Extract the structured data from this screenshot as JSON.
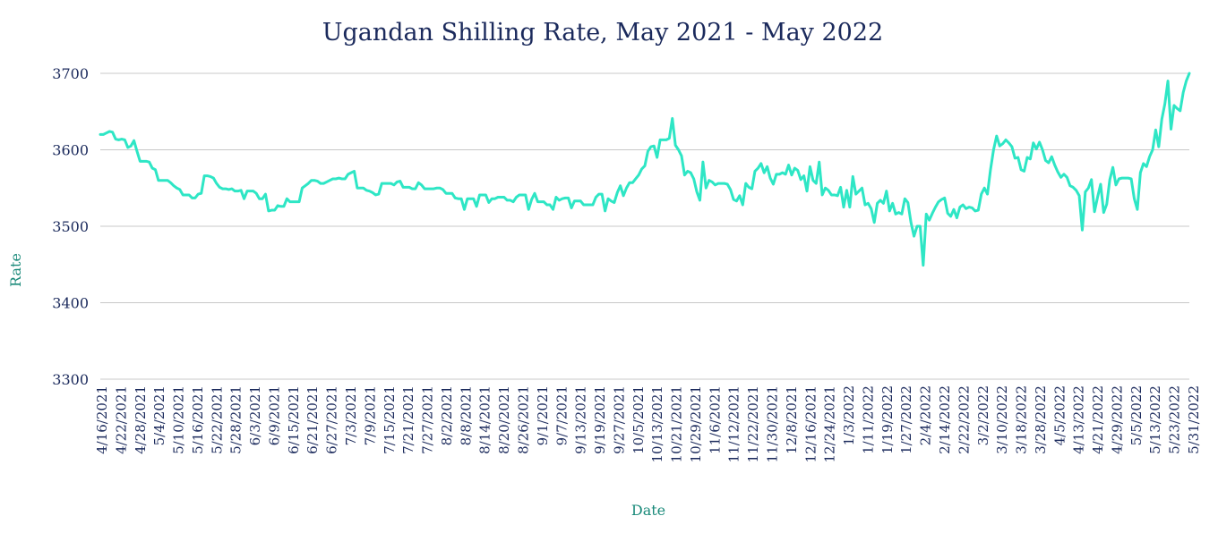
{
  "chart_data": {
    "type": "line",
    "title": "Ugandan Shilling Rate, May 2021 - May 2022",
    "xlabel": "Date",
    "ylabel": "Rate",
    "ylim": [
      3300,
      3700
    ],
    "yticks": [
      3300,
      3400,
      3500,
      3600,
      3700
    ],
    "grid": true,
    "legend": "none",
    "line_color": "#2ee6c5",
    "x_tick_labels": [
      "4/16/2021",
      "4/22/2021",
      "4/28/2021",
      "5/4/2021",
      "5/10/2021",
      "5/16/2021",
      "5/22/2021",
      "5/28/2021",
      "6/3/2021",
      "6/9/2021",
      "6/15/2021",
      "6/21/2021",
      "6/27/2021",
      "7/3/2021",
      "7/9/2021",
      "7/15/2021",
      "7/21/2021",
      "7/27/2021",
      "8/2/2021",
      "8/8/2021",
      "8/14/2021",
      "8/20/2021",
      "8/26/2021",
      "9/1/2021",
      "9/7/2021",
      "9/13/2021",
      "9/19/2021",
      "9/27/2021",
      "10/5/2021",
      "10/13/2021",
      "10/21/2021",
      "10/29/2021",
      "11/6/2021",
      "11/12/2021",
      "11/22/2021",
      "11/30/2021",
      "12/8/2021",
      "12/16/2021",
      "12/24/2021",
      "1/3/2022",
      "1/11/2022",
      "1/19/2022",
      "1/27/2022",
      "2/4/2022",
      "2/14/2022",
      "2/22/2022",
      "3/2/2022",
      "3/10/2022",
      "3/18/2022",
      "3/28/2022",
      "4/5/2022",
      "4/13/2022",
      "4/21/2022",
      "4/29/2022",
      "5/5/2022",
      "5/13/2022",
      "5/23/2022",
      "5/31/2022"
    ],
    "y": [
      3620,
      3620,
      3622,
      3624,
      3623,
      3614,
      3613,
      3614,
      3613,
      3603,
      3605,
      3612,
      3598,
      3585,
      3585,
      3585,
      3584,
      3576,
      3574,
      3560,
      3560,
      3560,
      3560,
      3557,
      3553,
      3550,
      3548,
      3541,
      3541,
      3541,
      3537,
      3537,
      3542,
      3543,
      3566,
      3566,
      3565,
      3563,
      3556,
      3551,
      3549,
      3549,
      3548,
      3549,
      3546,
      3546,
      3547,
      3536,
      3546,
      3546,
      3546,
      3543,
      3536,
      3536,
      3542,
      3520,
      3521,
      3521,
      3527,
      3526,
      3526,
      3536,
      3532,
      3532,
      3532,
      3532,
      3550,
      3553,
      3556,
      3560,
      3560,
      3559,
      3556,
      3556,
      3558,
      3560,
      3562,
      3562,
      3563,
      3562,
      3562,
      3568,
      3570,
      3572,
      3550,
      3550,
      3550,
      3547,
      3546,
      3544,
      3541,
      3542,
      3556,
      3556,
      3556,
      3556,
      3554,
      3558,
      3559,
      3551,
      3551,
      3551,
      3549,
      3549,
      3557,
      3554,
      3549,
      3549,
      3549,
      3549,
      3550,
      3550,
      3548,
      3543,
      3543,
      3543,
      3537,
      3536,
      3536,
      3522,
      3536,
      3536,
      3536,
      3526,
      3541,
      3541,
      3541,
      3531,
      3536,
      3536,
      3538,
      3538,
      3538,
      3534,
      3534,
      3532,
      3538,
      3541,
      3541,
      3541,
      3522,
      3535,
      3543,
      3532,
      3532,
      3532,
      3528,
      3528,
      3522,
      3538,
      3534,
      3536,
      3537,
      3537,
      3524,
      3533,
      3533,
      3533,
      3528,
      3528,
      3528,
      3528,
      3538,
      3542,
      3542,
      3520,
      3536,
      3533,
      3531,
      3544,
      3553,
      3540,
      3550,
      3557,
      3557,
      3562,
      3567,
      3575,
      3579,
      3598,
      3604,
      3605,
      3590,
      3613,
      3613,
      3613,
      3615,
      3641,
      3606,
      3600,
      3592,
      3567,
      3572,
      3570,
      3562,
      3545,
      3534,
      3584,
      3550,
      3560,
      3558,
      3554,
      3556,
      3556,
      3556,
      3555,
      3548,
      3535,
      3533,
      3540,
      3528,
      3556,
      3551,
      3549,
      3572,
      3576,
      3582,
      3570,
      3578,
      3563,
      3555,
      3568,
      3568,
      3570,
      3568,
      3580,
      3567,
      3576,
      3573,
      3561,
      3566,
      3546,
      3578,
      3560,
      3556,
      3584,
      3541,
      3550,
      3547,
      3541,
      3541,
      3540,
      3551,
      3525,
      3547,
      3525,
      3565,
      3542,
      3546,
      3550,
      3528,
      3530,
      3523,
      3505,
      3530,
      3534,
      3530,
      3546,
      3520,
      3530,
      3516,
      3518,
      3516,
      3536,
      3531,
      3505,
      3487,
      3500,
      3500,
      3449,
      3516,
      3508,
      3517,
      3525,
      3532,
      3535,
      3537,
      3517,
      3513,
      3522,
      3511,
      3525,
      3528,
      3523,
      3525,
      3524,
      3520,
      3521,
      3542,
      3550,
      3542,
      3574,
      3600,
      3618,
      3605,
      3608,
      3613,
      3609,
      3604,
      3589,
      3590,
      3574,
      3572,
      3590,
      3588,
      3609,
      3601,
      3610,
      3600,
      3586,
      3583,
      3591,
      3580,
      3571,
      3564,
      3568,
      3564,
      3553,
      3551,
      3547,
      3540,
      3495,
      3545,
      3550,
      3561,
      3519,
      3538,
      3555,
      3518,
      3529,
      3561,
      3577,
      3554,
      3562,
      3563,
      3563,
      3563,
      3562,
      3536,
      3522,
      3570,
      3582,
      3578,
      3591,
      3600,
      3626,
      3604,
      3640,
      3660,
      3690,
      3627,
      3658,
      3654,
      3651,
      3675,
      3690,
      3700
    ]
  }
}
